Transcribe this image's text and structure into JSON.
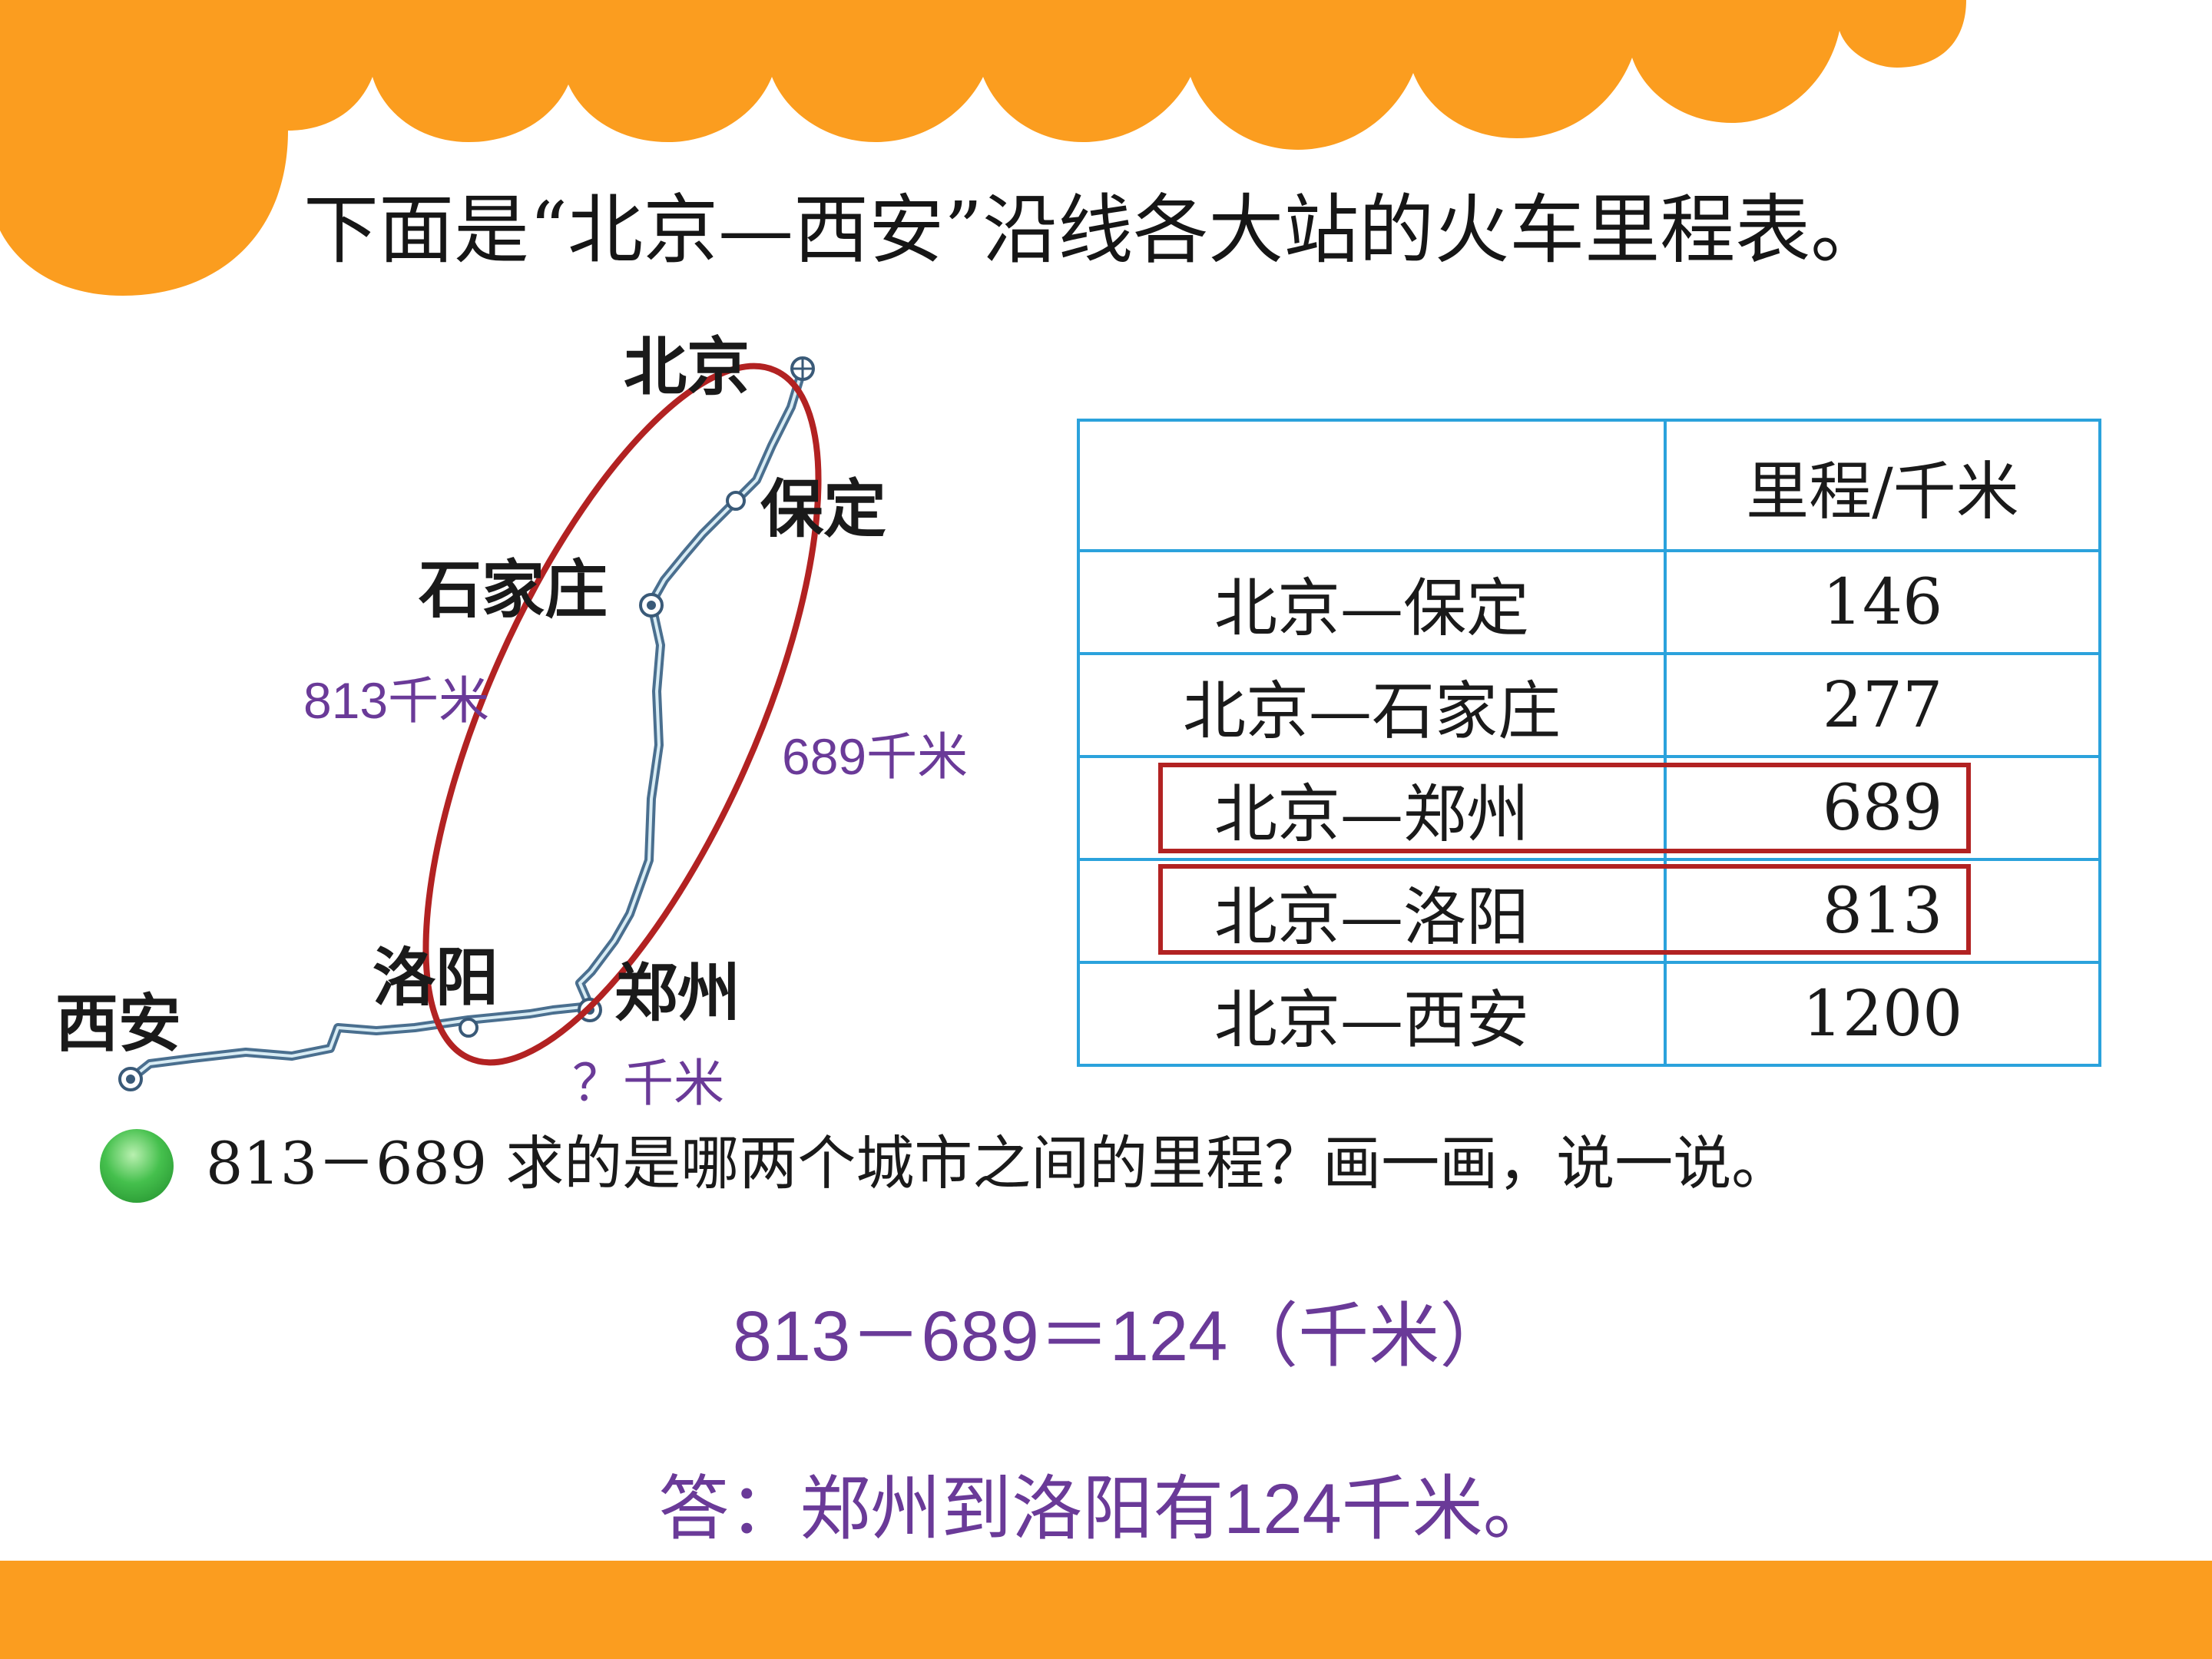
{
  "title": "下面是“北京—西安”沿线各大站的火车里程表。",
  "colors": {
    "accent_orange": "#fb9d1f",
    "table_border": "#2ba2dc",
    "highlight_red": "#b22222",
    "answer_purple": "#6a3a98"
  },
  "map": {
    "cities": {
      "beijing": "北京",
      "baoding": "保定",
      "shijiazhuang": "石家庄",
      "zhengzhou": "郑州",
      "luoyang": "洛阳",
      "xian": "西安"
    },
    "labels": {
      "dist_813": "813千米",
      "dist_689": "689千米",
      "dist_unknown": "？千米"
    }
  },
  "table": {
    "header": [
      "",
      "里程/千米"
    ],
    "rows": [
      {
        "route": "北京—保定",
        "km": "146"
      },
      {
        "route": "北京—石家庄",
        "km": "277"
      },
      {
        "route": "北京—郑州",
        "km": "689"
      },
      {
        "route": "北京—洛阳",
        "km": "813"
      },
      {
        "route": "北京—西安",
        "km": "1200"
      }
    ]
  },
  "question": "813－689 求的是哪两个城市之间的里程？画一画，说一说。",
  "equation": "813－689＝124（千米）",
  "answer": "答：郑州到洛阳有124千米。"
}
